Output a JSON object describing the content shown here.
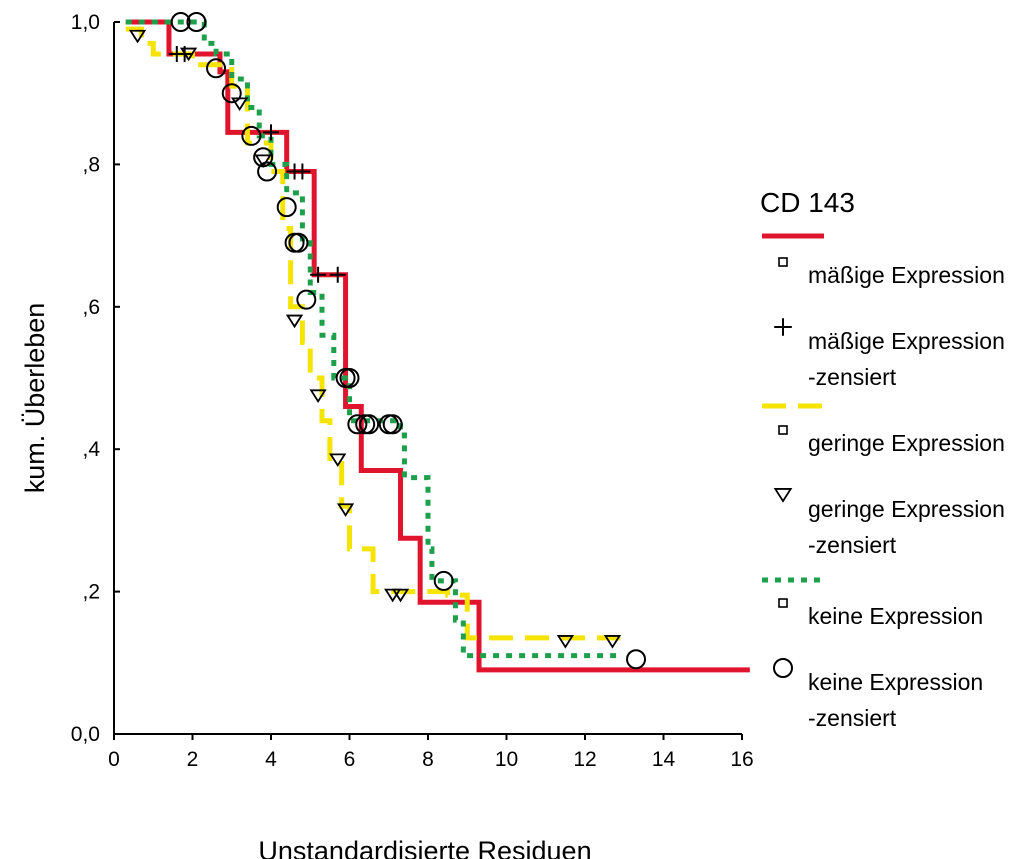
{
  "chart_data": {
    "type": "line",
    "step": true,
    "xlabel": "Unstandardisierte Residuen",
    "ylabel": "kum. Überleben",
    "xlim": [
      0,
      16
    ],
    "ylim": [
      0,
      1
    ],
    "x_ticks": [
      "0",
      "2",
      "4",
      "6",
      "8",
      "10",
      "12",
      "14",
      "16"
    ],
    "y_ticks": [
      "0,0",
      ",2",
      ",4",
      ",6",
      ",8",
      "1,0"
    ],
    "grid": false,
    "legend_position": "right",
    "legend": {
      "title": "CD 143",
      "entries": [
        {
          "label": "mäßige Expression",
          "marker": "square-small",
          "series": "mäßige Expression"
        },
        {
          "label": "mäßige Expression -zensiert",
          "marker": "plus"
        },
        {
          "label": "geringe Expression",
          "marker": "square-small",
          "series": "geringe Expression"
        },
        {
          "label": "geringe Expression -zensiert",
          "marker": "triangle-down"
        },
        {
          "label": "keine Expression",
          "marker": "square-small",
          "series": "keine Expression"
        },
        {
          "label": "keine Expression -zensiert",
          "marker": "circle"
        }
      ]
    },
    "series": [
      {
        "name": "mäßige Expression",
        "color": "#e0142d",
        "dash": "solid",
        "censor_marker": "plus",
        "steps": [
          [
            0.3,
            1.0
          ],
          [
            1.4,
            0.955
          ],
          [
            2.7,
            0.93
          ],
          [
            2.9,
            0.845
          ],
          [
            4.4,
            0.79
          ],
          [
            5.1,
            0.645
          ],
          [
            5.9,
            0.46
          ],
          [
            6.3,
            0.37
          ],
          [
            7.3,
            0.275
          ],
          [
            7.8,
            0.185
          ],
          [
            9.3,
            0.09
          ],
          [
            16.2,
            0.09
          ]
        ],
        "censored": [
          [
            1.6,
            0.955
          ],
          [
            1.8,
            0.955
          ],
          [
            4.0,
            0.845
          ],
          [
            4.6,
            0.79
          ],
          [
            4.8,
            0.79
          ],
          [
            5.2,
            0.645
          ],
          [
            5.7,
            0.645
          ]
        ]
      },
      {
        "name": "geringe Expression",
        "color": "#f5e400",
        "dash": "dashed",
        "censor_marker": "triangle-down",
        "steps": [
          [
            0.3,
            0.99
          ],
          [
            0.7,
            0.97
          ],
          [
            1.0,
            0.955
          ],
          [
            2.0,
            0.94
          ],
          [
            3.0,
            0.91
          ],
          [
            3.4,
            0.83
          ],
          [
            4.0,
            0.79
          ],
          [
            4.3,
            0.71
          ],
          [
            4.5,
            0.6
          ],
          [
            4.8,
            0.55
          ],
          [
            5.0,
            0.5
          ],
          [
            5.3,
            0.44
          ],
          [
            5.5,
            0.38
          ],
          [
            5.8,
            0.32
          ],
          [
            6.0,
            0.26
          ],
          [
            6.6,
            0.2
          ],
          [
            7.3,
            0.2
          ],
          [
            8.5,
            0.195
          ],
          [
            9.0,
            0.135
          ],
          [
            12.9,
            0.135
          ]
        ],
        "censored": [
          [
            0.6,
            0.98
          ],
          [
            1.9,
            0.955
          ],
          [
            3.2,
            0.885
          ],
          [
            3.8,
            0.805
          ],
          [
            4.6,
            0.58
          ],
          [
            5.2,
            0.475
          ],
          [
            5.7,
            0.385
          ],
          [
            5.9,
            0.315
          ],
          [
            7.1,
            0.195
          ],
          [
            7.3,
            0.195
          ],
          [
            11.5,
            0.13
          ],
          [
            12.7,
            0.13
          ]
        ]
      },
      {
        "name": "keine Expression",
        "color": "#1ea04b",
        "dash": "dotted",
        "censor_marker": "circle",
        "steps": [
          [
            0.3,
            1.0
          ],
          [
            2.3,
            0.97
          ],
          [
            2.6,
            0.955
          ],
          [
            3.0,
            0.92
          ],
          [
            3.4,
            0.88
          ],
          [
            3.7,
            0.84
          ],
          [
            4.0,
            0.8
          ],
          [
            4.4,
            0.76
          ],
          [
            4.8,
            0.69
          ],
          [
            5.0,
            0.62
          ],
          [
            5.3,
            0.56
          ],
          [
            5.6,
            0.5
          ],
          [
            6.0,
            0.44
          ],
          [
            7.3,
            0.42
          ],
          [
            7.4,
            0.36
          ],
          [
            8.0,
            0.26
          ],
          [
            8.1,
            0.215
          ],
          [
            8.7,
            0.16
          ],
          [
            8.9,
            0.11
          ],
          [
            12.9,
            0.11
          ]
        ],
        "censored": [
          [
            1.7,
            1.0
          ],
          [
            2.1,
            1.0
          ],
          [
            2.6,
            0.935
          ],
          [
            3.0,
            0.9
          ],
          [
            3.5,
            0.84
          ],
          [
            3.8,
            0.81
          ],
          [
            3.9,
            0.79
          ],
          [
            4.4,
            0.74
          ],
          [
            4.6,
            0.69
          ],
          [
            4.7,
            0.69
          ],
          [
            4.9,
            0.61
          ],
          [
            5.9,
            0.5
          ],
          [
            6.0,
            0.5
          ],
          [
            6.2,
            0.435
          ],
          [
            6.4,
            0.435
          ],
          [
            6.5,
            0.435
          ],
          [
            7.0,
            0.435
          ],
          [
            7.1,
            0.435
          ],
          [
            8.4,
            0.215
          ],
          [
            13.3,
            0.105
          ]
        ]
      }
    ]
  }
}
